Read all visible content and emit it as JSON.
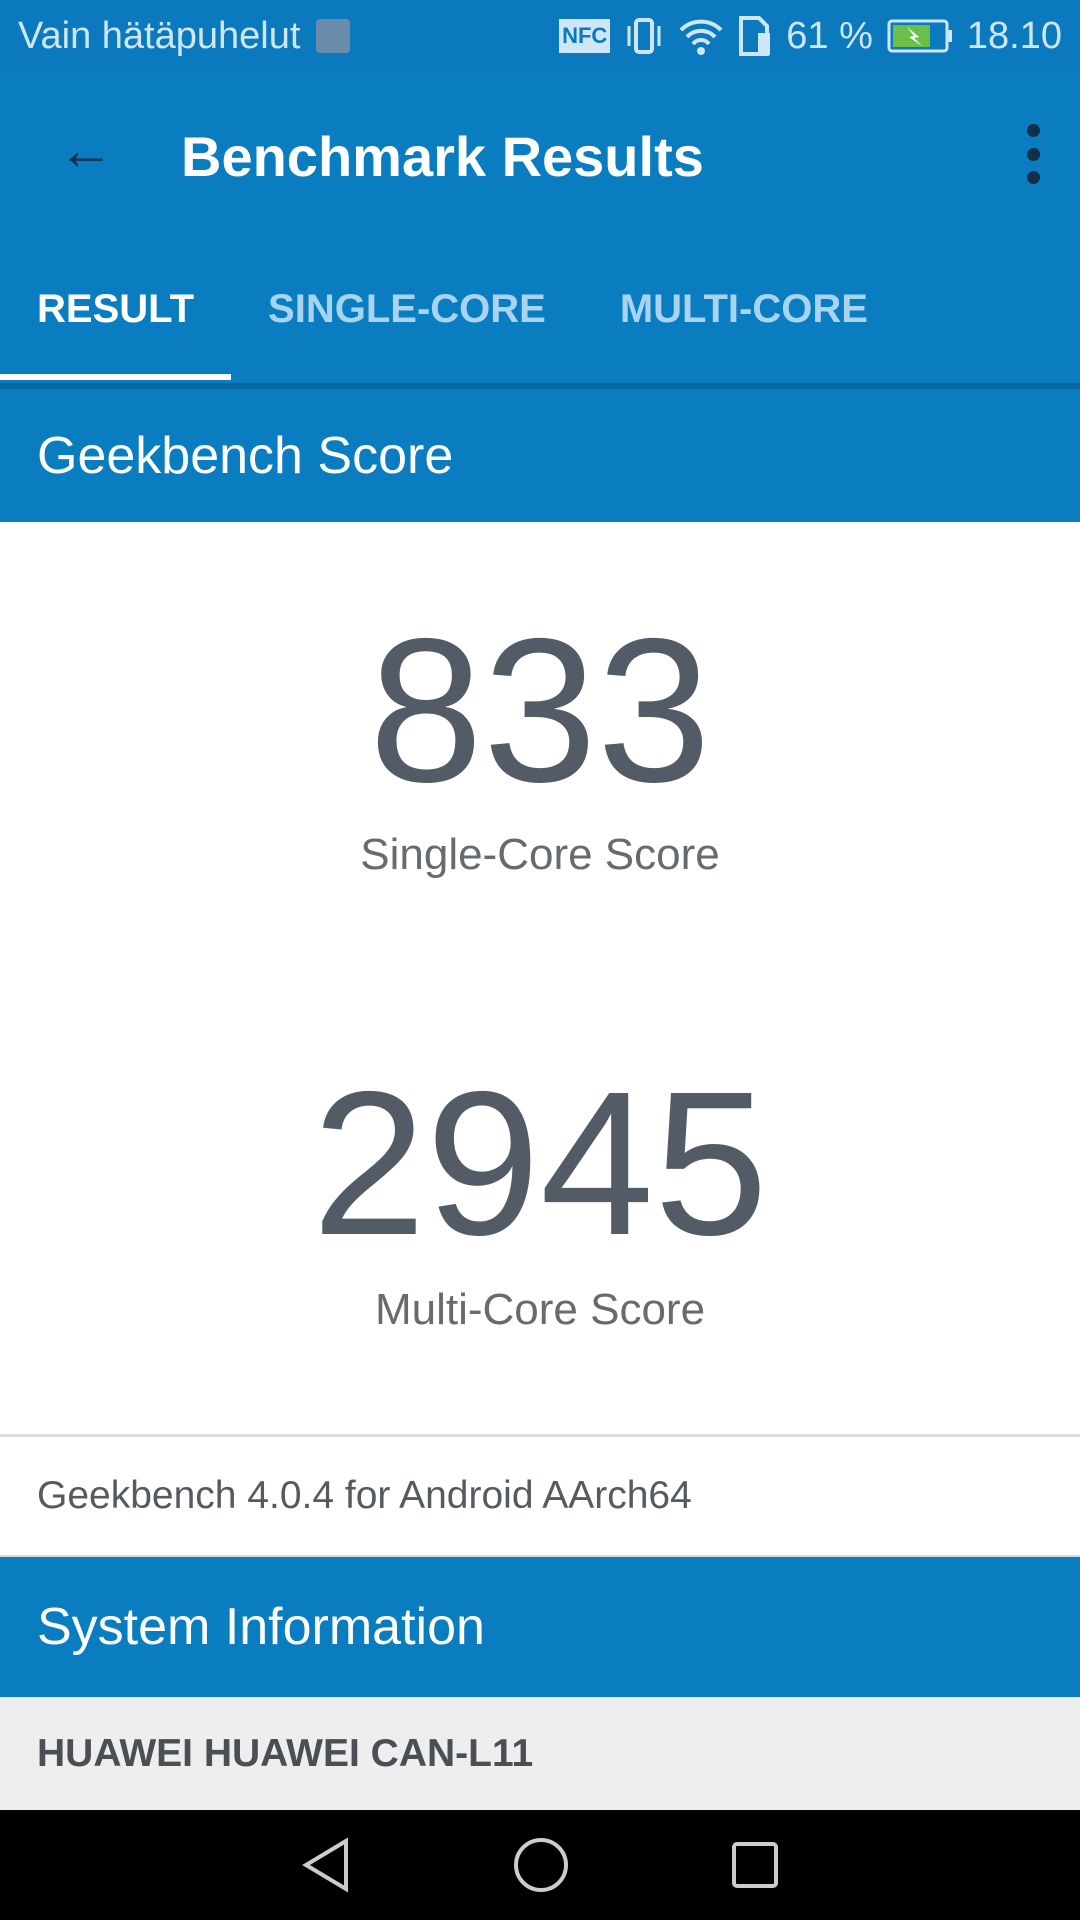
{
  "status_bar": {
    "carrier": "Vain hätäpuhelut",
    "nfc": "NFC",
    "battery_percent": "61 %",
    "time": "18.10",
    "colors": {
      "background": "#0b79be",
      "battery_fill": "#6abf4b"
    }
  },
  "toolbar": {
    "title": "Benchmark Results",
    "back_icon": "arrow-left-icon",
    "menu_icon": "more-vert-icon"
  },
  "tabs": [
    {
      "label": "RESULT",
      "active": true
    },
    {
      "label": "SINGLE-CORE",
      "active": false
    },
    {
      "label": "MULTI-CORE",
      "active": false
    }
  ],
  "geekbench": {
    "header": "Geekbench Score",
    "single_score": "833",
    "single_label": "Single-Core Score",
    "multi_score": "2945",
    "multi_label": "Multi-Core Score",
    "version": "Geekbench 4.0.4 for Android AArch64"
  },
  "system": {
    "header": "System Information",
    "device": "HUAWEI HUAWEI CAN-L11"
  },
  "colors": {
    "primary": "#0a7dc0",
    "score_text": "#535c66"
  }
}
